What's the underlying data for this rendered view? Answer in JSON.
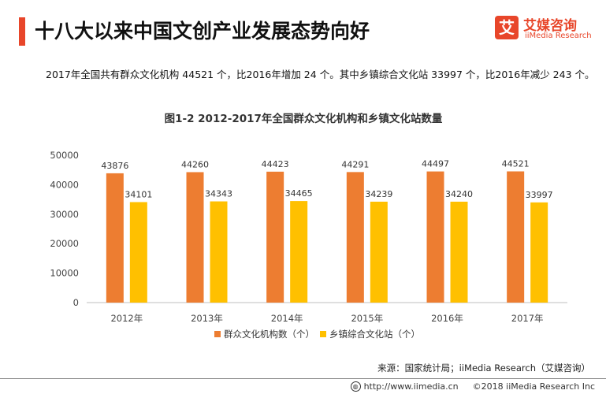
{
  "header": {
    "title": "十八大以来中国文创产业发展态势向好",
    "logo_glyph": "艾",
    "logo_name": "艾媒咨询",
    "logo_sub": "iiMedia Research",
    "accent_color": "#e8462a"
  },
  "summary": "2017年全国共有群众文化机构 44521 个，比2016年增加 24 个。其中乡镇综合文化站 33997 个，比2016年减少 243 个。",
  "chart_data": {
    "type": "bar",
    "title": "图1-2 2012-2017年全国群众文化机构和乡镇文化站数量",
    "categories": [
      "2012年",
      "2013年",
      "2014年",
      "2015年",
      "2016年",
      "2017年"
    ],
    "series": [
      {
        "name": "群众文化机构数（个）",
        "color": "#ed7d31",
        "values": [
          43876,
          44260,
          44423,
          44291,
          44497,
          44521
        ]
      },
      {
        "name": "乡镇综合文化站（个）",
        "color": "#ffc000",
        "values": [
          34101,
          34343,
          34465,
          34239,
          34240,
          33997
        ]
      }
    ],
    "ylim": [
      0,
      50000
    ],
    "yticks": [
      0,
      10000,
      20000,
      30000,
      40000,
      50000
    ],
    "xlabel": "",
    "ylabel": "",
    "legend": "bottom"
  },
  "source": "来源：国家统计局；iiMedia Research（艾媒咨询）",
  "footer": {
    "url": "http://www.iimedia.cn",
    "copyright": "©2018  iiMedia Research  Inc"
  }
}
